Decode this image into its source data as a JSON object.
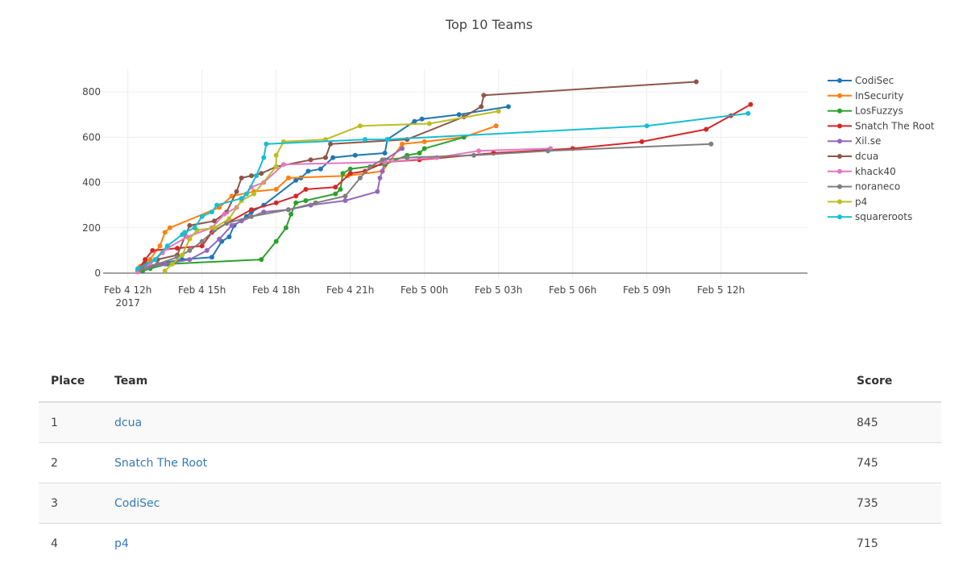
{
  "chart_data": {
    "type": "line",
    "title": "Top 10 Teams",
    "xlabel": "",
    "ylabel": "",
    "x_axis": {
      "type": "date",
      "range_hours_from_feb4_12h": [
        -1,
        27.5
      ],
      "ticks": [
        {
          "h": 0,
          "label": "Feb 4 12h",
          "sub": "2017"
        },
        {
          "h": 3,
          "label": "Feb 4 15h"
        },
        {
          "h": 6,
          "label": "Feb 4 18h"
        },
        {
          "h": 9,
          "label": "Feb 4 21h"
        },
        {
          "h": 12,
          "label": "Feb 5 00h"
        },
        {
          "h": 15,
          "label": "Feb 5 03h"
        },
        {
          "h": 18,
          "label": "Feb 5 06h"
        },
        {
          "h": 21,
          "label": "Feb 5 09h"
        },
        {
          "h": 24,
          "label": "Feb 5 12h"
        }
      ]
    },
    "y_axis": {
      "range": [
        -25,
        900
      ],
      "ticks": [
        0,
        200,
        400,
        600,
        800
      ]
    },
    "legend_position": "right",
    "grid": true,
    "series": [
      {
        "name": "CodiSec",
        "color": "#1f77b4",
        "points": [
          [
            0.4,
            10
          ],
          [
            0.6,
            25
          ],
          [
            1.2,
            40
          ],
          [
            2.2,
            60
          ],
          [
            3.4,
            70
          ],
          [
            3.8,
            140
          ],
          [
            4.1,
            160
          ],
          [
            4.3,
            210
          ],
          [
            4.8,
            250
          ],
          [
            5.0,
            270
          ],
          [
            5.5,
            300
          ],
          [
            6.8,
            410
          ],
          [
            7.0,
            420
          ],
          [
            7.3,
            450
          ],
          [
            7.8,
            460
          ],
          [
            8.3,
            510
          ],
          [
            9.2,
            520
          ],
          [
            10.4,
            530
          ],
          [
            10.5,
            590
          ],
          [
            11.6,
            670
          ],
          [
            11.9,
            680
          ],
          [
            13.4,
            700
          ],
          [
            15.4,
            735
          ]
        ]
      },
      {
        "name": "InSecurity",
        "color": "#ff7f0e",
        "points": [
          [
            0.5,
            30
          ],
          [
            0.9,
            60
          ],
          [
            1.3,
            120
          ],
          [
            1.5,
            180
          ],
          [
            1.7,
            200
          ],
          [
            3.7,
            290
          ],
          [
            4.2,
            340
          ],
          [
            5.1,
            360
          ],
          [
            6.0,
            370
          ],
          [
            6.5,
            420
          ],
          [
            8.9,
            430
          ],
          [
            10.3,
            450
          ],
          [
            11.1,
            570
          ],
          [
            12.0,
            580
          ],
          [
            13.6,
            600
          ],
          [
            14.9,
            650
          ]
        ]
      },
      {
        "name": "LosFuzzys",
        "color": "#2ca02c",
        "points": [
          [
            0.6,
            10
          ],
          [
            0.9,
            20
          ],
          [
            1.6,
            40
          ],
          [
            5.4,
            60
          ],
          [
            6.0,
            140
          ],
          [
            6.4,
            200
          ],
          [
            6.6,
            260
          ],
          [
            6.8,
            310
          ],
          [
            7.2,
            320
          ],
          [
            8.4,
            350
          ],
          [
            8.6,
            370
          ],
          [
            8.7,
            440
          ],
          [
            9.0,
            460
          ],
          [
            10.4,
            480
          ],
          [
            11.3,
            520
          ],
          [
            11.8,
            530
          ],
          [
            12.0,
            550
          ],
          [
            13.6,
            600
          ]
        ]
      },
      {
        "name": "Snatch The Root",
        "color": "#d62728",
        "points": [
          [
            0.4,
            10
          ],
          [
            0.7,
            60
          ],
          [
            1.0,
            100
          ],
          [
            2.0,
            110
          ],
          [
            3.0,
            120
          ],
          [
            3.4,
            180
          ],
          [
            4.0,
            220
          ],
          [
            5.0,
            280
          ],
          [
            6.0,
            310
          ],
          [
            6.8,
            340
          ],
          [
            7.2,
            370
          ],
          [
            8.4,
            380
          ],
          [
            9.0,
            440
          ],
          [
            9.6,
            450
          ],
          [
            10.4,
            490
          ],
          [
            11.8,
            500
          ],
          [
            14.8,
            530
          ],
          [
            18.0,
            550
          ],
          [
            20.8,
            580
          ],
          [
            23.4,
            635
          ],
          [
            24.4,
            695
          ],
          [
            25.2,
            745
          ]
        ]
      },
      {
        "name": "Xil.se",
        "color": "#9467bd",
        "points": [
          [
            0.4,
            10
          ],
          [
            0.8,
            25
          ],
          [
            1.5,
            40
          ],
          [
            2.5,
            60
          ],
          [
            3.2,
            100
          ],
          [
            3.7,
            150
          ],
          [
            4.2,
            210
          ],
          [
            4.6,
            230
          ],
          [
            5.5,
            270
          ],
          [
            6.5,
            280
          ],
          [
            7.4,
            300
          ],
          [
            8.8,
            320
          ],
          [
            10.1,
            360
          ],
          [
            10.2,
            420
          ],
          [
            10.3,
            450
          ],
          [
            10.4,
            500
          ],
          [
            11.1,
            550
          ]
        ]
      },
      {
        "name": "dcua",
        "color": "#8c564b",
        "points": [
          [
            0.4,
            10
          ],
          [
            0.7,
            40
          ],
          [
            1.2,
            60
          ],
          [
            2.0,
            80
          ],
          [
            2.5,
            210
          ],
          [
            3.5,
            230
          ],
          [
            4.0,
            270
          ],
          [
            4.4,
            360
          ],
          [
            4.6,
            420
          ],
          [
            5.0,
            430
          ],
          [
            5.4,
            440
          ],
          [
            6.0,
            470
          ],
          [
            7.4,
            500
          ],
          [
            8.0,
            510
          ],
          [
            8.2,
            570
          ],
          [
            11.3,
            590
          ],
          [
            13.6,
            690
          ],
          [
            14.3,
            735
          ],
          [
            14.4,
            785
          ],
          [
            23.0,
            845
          ]
        ]
      },
      {
        "name": "khack40",
        "color": "#e377c2",
        "points": [
          [
            0.4,
            5
          ],
          [
            0.9,
            40
          ],
          [
            1.4,
            90
          ],
          [
            1.6,
            110
          ],
          [
            2.4,
            160
          ],
          [
            3.4,
            200
          ],
          [
            3.9,
            260
          ],
          [
            4.4,
            290
          ],
          [
            5.0,
            380
          ],
          [
            5.5,
            400
          ],
          [
            6.3,
            480
          ],
          [
            10.4,
            490
          ],
          [
            12.5,
            510
          ],
          [
            14.2,
            540
          ],
          [
            17.1,
            550
          ]
        ]
      },
      {
        "name": "noraneco",
        "color": "#7f7f7f",
        "points": [
          [
            0.5,
            15
          ],
          [
            1.2,
            40
          ],
          [
            2.0,
            70
          ],
          [
            2.5,
            100
          ],
          [
            3.0,
            140
          ],
          [
            3.5,
            190
          ],
          [
            4.0,
            220
          ],
          [
            5.0,
            250
          ],
          [
            6.5,
            280
          ],
          [
            7.6,
            310
          ],
          [
            8.8,
            340
          ],
          [
            9.4,
            420
          ],
          [
            9.8,
            470
          ],
          [
            10.3,
            500
          ],
          [
            11.3,
            510
          ],
          [
            14.0,
            520
          ],
          [
            17.0,
            540
          ],
          [
            23.6,
            570
          ]
        ]
      },
      {
        "name": "p4",
        "color": "#bcbd22",
        "points": [
          [
            1.5,
            10
          ],
          [
            1.8,
            40
          ],
          [
            2.2,
            80
          ],
          [
            2.5,
            150
          ],
          [
            2.8,
            190
          ],
          [
            3.5,
            200
          ],
          [
            4.1,
            240
          ],
          [
            4.6,
            320
          ],
          [
            5.1,
            350
          ],
          [
            6.0,
            470
          ],
          [
            6.0,
            520
          ],
          [
            6.3,
            580
          ],
          [
            8.0,
            590
          ],
          [
            9.4,
            650
          ],
          [
            12.2,
            660
          ],
          [
            15.0,
            715
          ]
        ]
      },
      {
        "name": "squareroots",
        "color": "#17becf",
        "points": [
          [
            0.4,
            20
          ],
          [
            1.1,
            60
          ],
          [
            1.6,
            120
          ],
          [
            2.2,
            170
          ],
          [
            2.3,
            180
          ],
          [
            2.7,
            200
          ],
          [
            3.0,
            250
          ],
          [
            3.4,
            270
          ],
          [
            3.6,
            300
          ],
          [
            4.6,
            330
          ],
          [
            4.8,
            350
          ],
          [
            5.2,
            430
          ],
          [
            5.5,
            510
          ],
          [
            5.6,
            570
          ],
          [
            9.6,
            590
          ],
          [
            10.5,
            590
          ],
          [
            21.0,
            650
          ],
          [
            25.1,
            705
          ]
        ]
      }
    ]
  },
  "scoreboard": {
    "headers": {
      "place": "Place",
      "team": "Team",
      "score": "Score"
    },
    "rows": [
      {
        "place": "1",
        "team": "dcua",
        "score": "845"
      },
      {
        "place": "2",
        "team": "Snatch The Root",
        "score": "745"
      },
      {
        "place": "3",
        "team": "CodiSec",
        "score": "735"
      },
      {
        "place": "4",
        "team": "p4",
        "score": "715"
      }
    ]
  }
}
